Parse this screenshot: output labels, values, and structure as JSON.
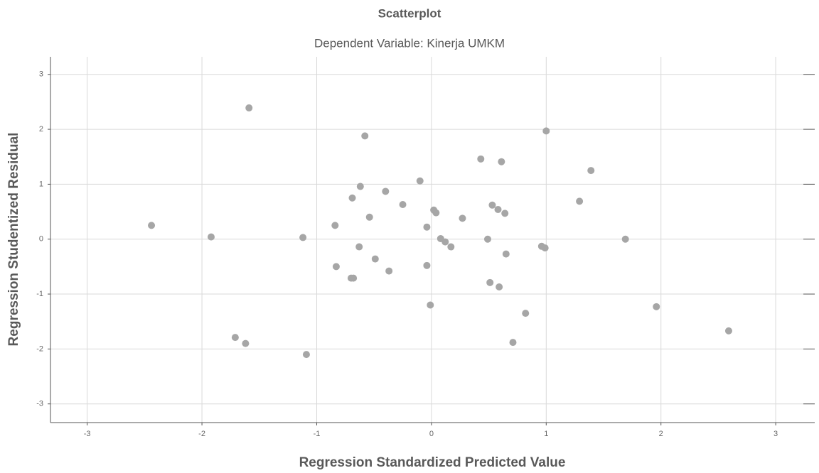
{
  "chart_data": {
    "type": "scatter",
    "title": "Scatterplot",
    "subtitle": "Dependent Variable: Kinerja UMKM",
    "xlabel": "Regression Standardized Predicted Value",
    "ylabel": "Regression Studentized Residual",
    "color": "#a6a6a6",
    "grid": true,
    "xlim": [
      -3.32,
      3.34
    ],
    "ylim": [
      -3.34,
      3.32
    ],
    "xticks": [
      -3,
      -2,
      -1,
      0,
      1,
      2,
      3
    ],
    "yticks": [
      -3,
      -2,
      -1,
      0,
      1,
      2,
      3
    ],
    "x": [
      -1.59,
      -0.58,
      1.0,
      0.43,
      0.61,
      1.39,
      -0.1,
      -0.62,
      -0.4,
      -0.69,
      1.29,
      -0.25,
      0.53,
      0.58,
      0.02,
      0.04,
      0.64,
      0.27,
      -0.54,
      -2.44,
      -0.84,
      -0.04,
      -1.92,
      -1.12,
      0.08,
      0.12,
      0.17,
      0.49,
      1.69,
      0.96,
      0.99,
      -0.63,
      0.65,
      -0.49,
      -0.83,
      -0.04,
      -0.37,
      -0.7,
      -0.68,
      0.51,
      0.59,
      -0.01,
      0.82,
      1.96,
      -1.71,
      -1.62,
      0.71,
      -1.09,
      2.59
    ],
    "values": [
      2.39,
      1.88,
      1.97,
      1.46,
      1.41,
      1.25,
      1.06,
      0.96,
      0.87,
      0.75,
      0.69,
      0.63,
      0.62,
      0.54,
      0.53,
      0.48,
      0.47,
      0.38,
      0.4,
      0.25,
      0.25,
      0.22,
      0.04,
      0.03,
      0.01,
      -0.05,
      -0.14,
      0.0,
      0.0,
      -0.13,
      -0.16,
      -0.14,
      -0.27,
      -0.36,
      -0.5,
      -0.48,
      -0.58,
      -0.71,
      -0.71,
      -0.79,
      -0.87,
      -1.2,
      -1.35,
      -1.23,
      -1.79,
      -1.9,
      -1.88,
      -2.1,
      -1.67
    ]
  }
}
